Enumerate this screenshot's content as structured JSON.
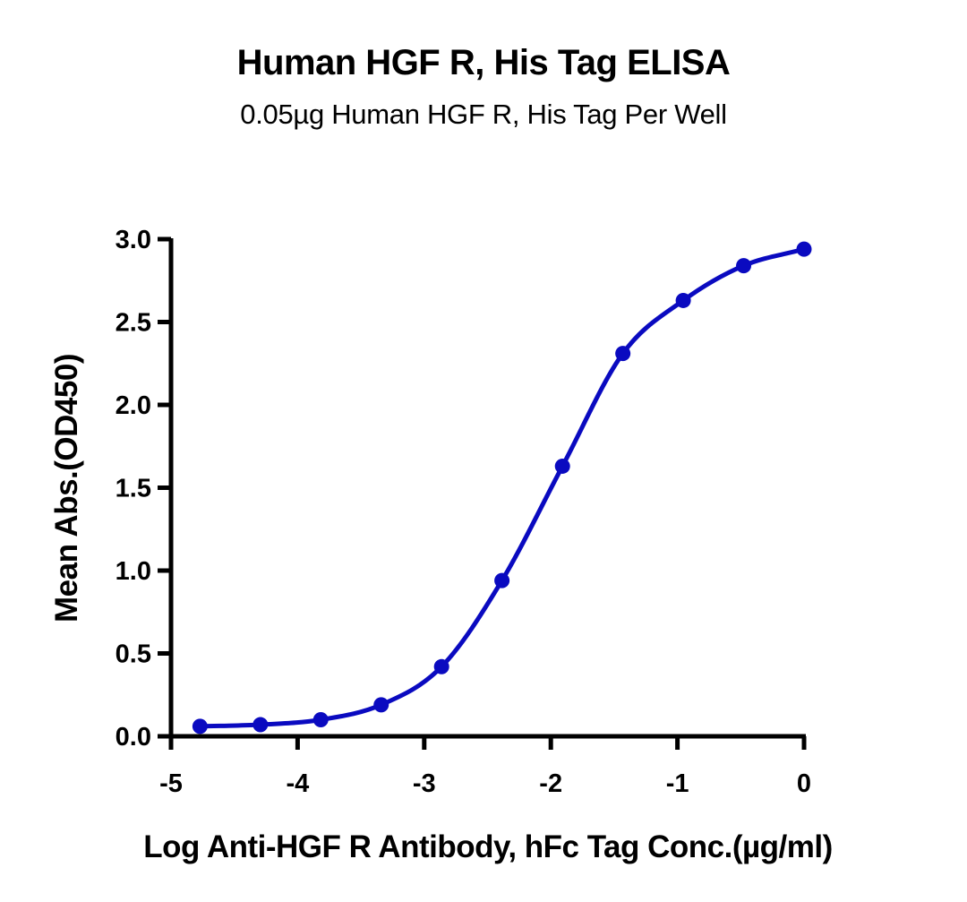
{
  "chart_data": {
    "type": "scatter",
    "title": "Human HGF R, His Tag ELISA",
    "subtitle": "0.05µg Human HGF R, His Tag Per Well",
    "xlabel": "Log Anti-HGF R Antibody, hFc Tag Conc.(µg/ml)",
    "ylabel": "Mean Abs.(OD450)",
    "xlim": [
      -5,
      0
    ],
    "ylim": [
      0,
      3.0
    ],
    "x_ticks": [
      "-5",
      "-4",
      "-3",
      "-2",
      "-1",
      "0"
    ],
    "y_ticks": [
      "0.0",
      "0.5",
      "1.0",
      "1.5",
      "2.0",
      "2.5",
      "3.0"
    ],
    "grid": false,
    "legend": null,
    "series": [
      {
        "name": "Human HGF R, His Tag",
        "color": "#0A0AC0",
        "marker": "circle",
        "fit": "4PL sigmoidal curve",
        "x": [
          -4.771,
          -4.294,
          -3.817,
          -3.34,
          -2.863,
          -2.386,
          -1.908,
          -1.431,
          -0.954,
          -0.477,
          0.0
        ],
        "values": [
          0.06,
          0.07,
          0.1,
          0.19,
          0.42,
          0.94,
          1.63,
          2.31,
          2.63,
          2.84,
          2.94
        ]
      }
    ]
  },
  "colors": {
    "series": "#0A0AC0",
    "axis": "#000000",
    "background": "#FFFFFF"
  }
}
